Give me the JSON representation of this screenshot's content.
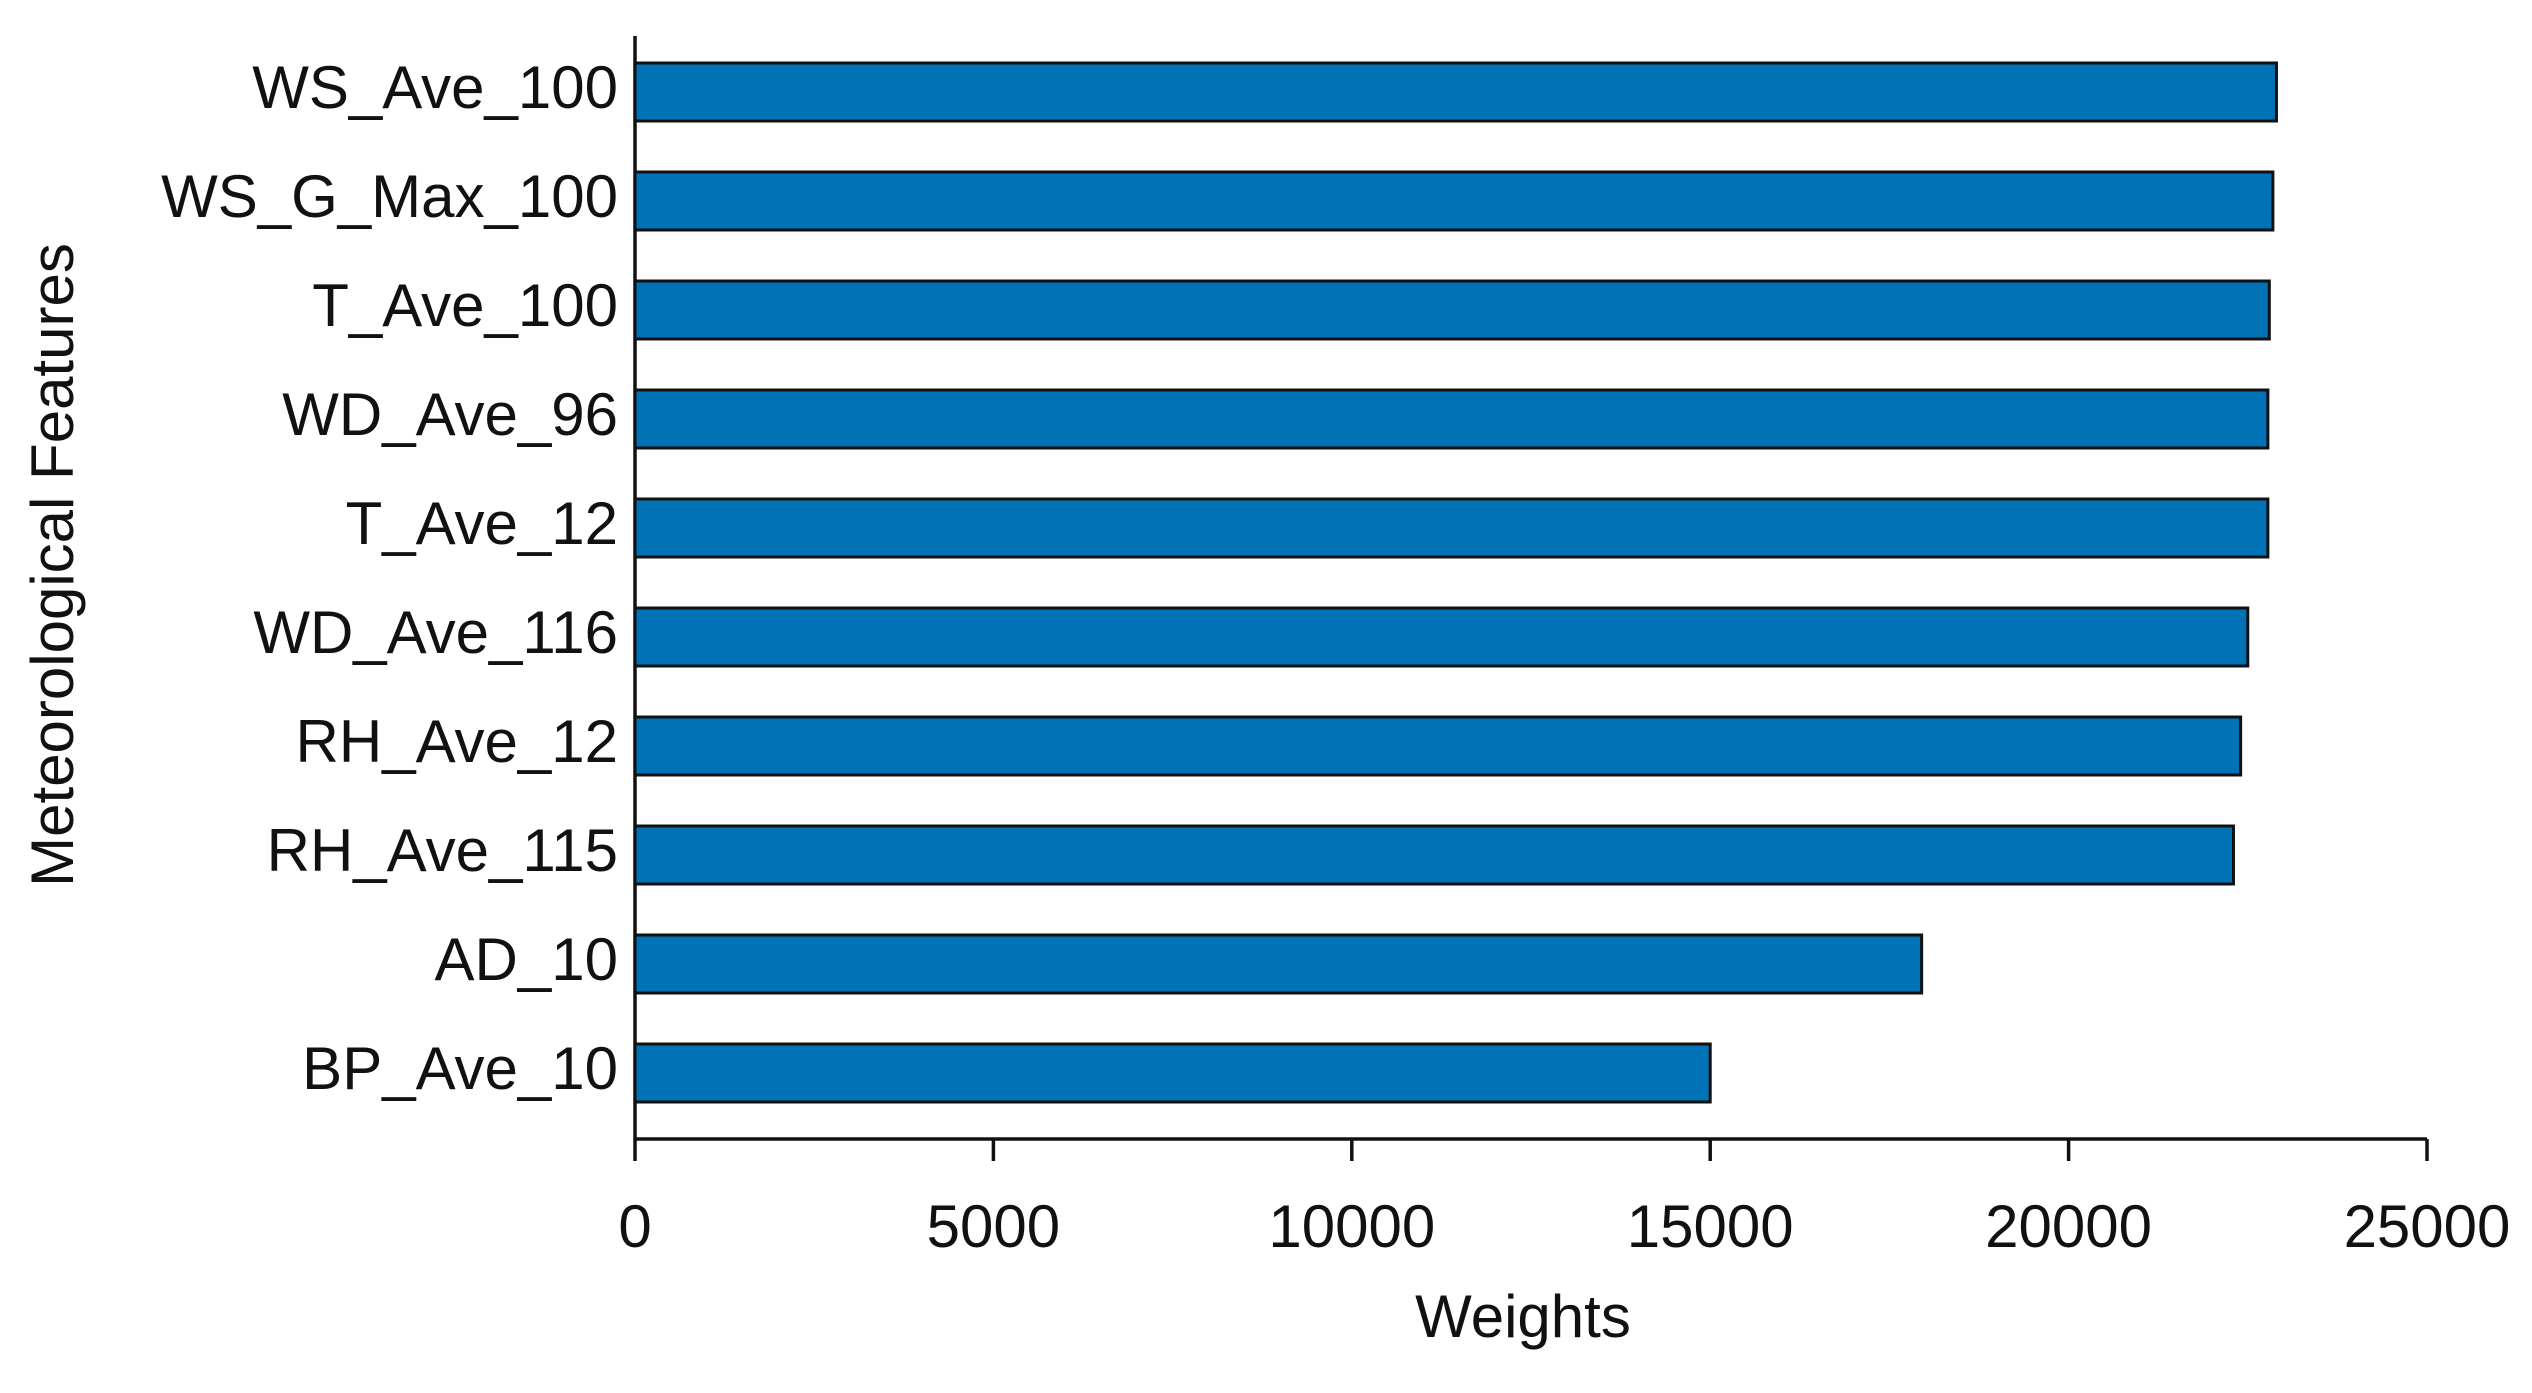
{
  "chart_data": {
    "type": "hbar",
    "xlabel": "Weights",
    "ylabel": "Meteorological Features",
    "categories": [
      "WS_Ave_100",
      "WS_G_Max_100",
      "T_Ave_100",
      "WD_Ave_96",
      "T_Ave_12",
      "WD_Ave_116",
      "RH_Ave_12",
      "RH_Ave_115",
      "AD_10",
      "BP_Ave_10"
    ],
    "values": [
      22900,
      22850,
      22800,
      22780,
      22780,
      22500,
      22400,
      22300,
      17950,
      15000
    ],
    "color": "#0072b5",
    "xlim": [
      0,
      25000
    ],
    "xticks": [
      0,
      5000,
      10000,
      15000,
      20000,
      25000
    ],
    "grid": false
  }
}
